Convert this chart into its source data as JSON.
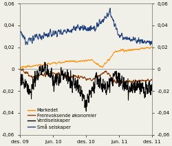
{
  "title": "",
  "xlim_start": 0,
  "xlim_end": 730,
  "ylim": [
    -0.06,
    0.06
  ],
  "yticks": [
    -0.06,
    -0.04,
    -0.02,
    0,
    0.02,
    0.04,
    0.06
  ],
  "yticklabels": [
    "-0,06",
    "-0,04",
    "-0,02",
    "0",
    "0,02",
    "0,04",
    "0,06"
  ],
  "xtick_positions": [
    0,
    183,
    365,
    548,
    730
  ],
  "xtick_labels": [
    "des. 09",
    "jun. 10",
    "des. 10",
    "jun. 11",
    "des. 11"
  ],
  "legend_labels": [
    "Markedet",
    "Fremvoksende økonomier",
    "Verdiselskaper",
    "Små selskaper"
  ],
  "colors": {
    "markedet": "#FF8C00",
    "fremvoksende": "#8B3A00",
    "verdiselskaper": "#000000",
    "sma_selskaper": "#1F3F7A"
  },
  "background_color": "#f0f0e8",
  "figsize": [
    2.5,
    2.12
  ],
  "dpi": 100
}
